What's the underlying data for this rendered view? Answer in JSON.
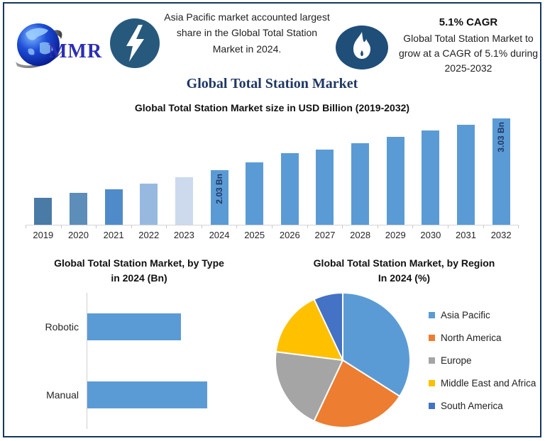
{
  "brand": {
    "logo_text": "MMR"
  },
  "header": {
    "headline": "Asia Pacific market accounted largest share in the Global Total Station Market in 2024.",
    "cagr_title": "5.1% CAGR",
    "cagr_text": "Global Total Station Market to grow at a CAGR of 5.1% during 2025-2032"
  },
  "title": "Global Total Station Market",
  "colors": {
    "border_navy": "#17375e",
    "title_navy": "#1f3864",
    "icon_circle_blue": "#27597d",
    "flame_ellipse_blue": "#1f4e79",
    "primary_bar_blue": "#5b9bd5"
  },
  "chart_data": [
    {
      "type": "bar",
      "title": "Global Total Station Market size in USD Billion (2019-2032)",
      "categories": [
        "2019",
        "2020",
        "2021",
        "2022",
        "2023",
        "2024",
        "2025",
        "2026",
        "2027",
        "2028",
        "2029",
        "2030",
        "2031",
        "2032"
      ],
      "values": [
        1.5,
        1.59,
        1.66,
        1.77,
        1.89,
        2.03,
        2.18,
        2.36,
        2.43,
        2.55,
        2.67,
        2.8,
        2.91,
        3.03
      ],
      "unit": "USD Billion",
      "data_labels": {
        "2024": "2.03 Bn",
        "2032": "3.03 Bn"
      },
      "bar_colors": [
        "#4a7aa6",
        "#5d8db9",
        "#4f8bc9",
        "#97b9e0",
        "#cdd9ec",
        "#5b9bd5",
        "#5b9bd5",
        "#5b9bd5",
        "#5b9bd5",
        "#5b9bd5",
        "#5b9bd5",
        "#5b9bd5",
        "#5b9bd5",
        "#5b9bd5"
      ],
      "ylim": [
        0.975,
        3.2
      ],
      "grid": false,
      "xlabel": "",
      "ylabel": ""
    },
    {
      "type": "bar",
      "orientation": "horizontal",
      "title": "Global Total Station Market, by Type in 2024 (Bn)",
      "title_lines": [
        "Global Total Station Market, by Type",
        "in 2024 (Bn)"
      ],
      "categories": [
        "Robotic",
        "Manual"
      ],
      "values": [
        0.89,
        1.14
      ],
      "unit": "Bn",
      "bar_color": "#5b9bd5",
      "grid": false
    },
    {
      "type": "pie",
      "title": "Global Total Station Market, by Region In 2024 (%)",
      "title_lines": [
        "Global Total Station Market, by Region",
        "In 2024 (%)"
      ],
      "labels": [
        "Asia Pacific",
        "North America",
        "Europe",
        "Middle East and Africa",
        "South America"
      ],
      "values": [
        34,
        23,
        20,
        16,
        7
      ],
      "colors": [
        "#5b9bd5",
        "#ed7d31",
        "#a5a5a5",
        "#ffc000",
        "#4472c4"
      ],
      "legend_position": "right",
      "start_angle_deg": 0
    }
  ]
}
